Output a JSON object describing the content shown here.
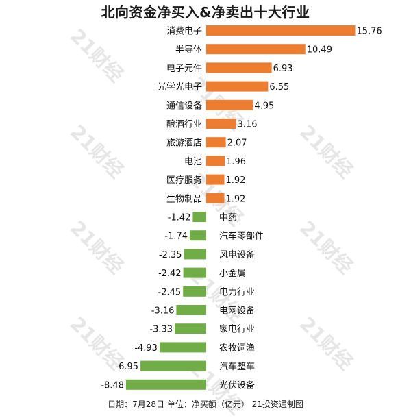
{
  "chart_data": {
    "type": "bar",
    "orientation": "horizontal",
    "title": "北向资金净买入&净卖出十大行业",
    "categories": [
      "消费电子",
      "半导体",
      "电子元件",
      "光学光电子",
      "通信设备",
      "酿酒行业",
      "旅游酒店",
      "电池",
      "医疗服务",
      "生物制品",
      "中药",
      "汽车零部件",
      "风电设备",
      "小金属",
      "电力行业",
      "电网设备",
      "家电行业",
      "农牧饲渔",
      "汽车整车",
      "光伏设备"
    ],
    "values": [
      15.76,
      10.49,
      6.93,
      6.55,
      4.95,
      3.16,
      2.07,
      1.96,
      1.92,
      1.92,
      -1.42,
      -1.74,
      -2.35,
      -2.42,
      -2.45,
      -3.16,
      -3.33,
      -4.93,
      -6.95,
      -8.48
    ],
    "value_labels": [
      "15.76",
      "10.49",
      "6.93",
      "6.55",
      "4.95",
      "3.16",
      "2.07",
      "1.96",
      "1.92",
      "1.92",
      "-1.42",
      "-1.74",
      "-2.35",
      "-2.42",
      "-2.45",
      "-3.16",
      "-3.33",
      "-4.93",
      "-6.95",
      "-8.48"
    ],
    "colors": {
      "positive": "#ed7d31",
      "negative": "#70ad47"
    },
    "grid": false,
    "legend": "none"
  },
  "footer": "日期：7月28日 单位：净买额（亿元） 21投资通制图",
  "watermark": "21财经"
}
